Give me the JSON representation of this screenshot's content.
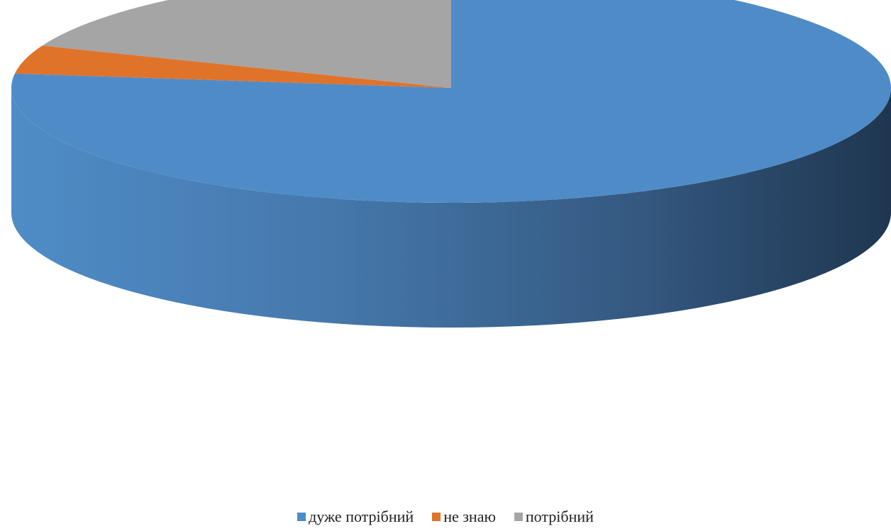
{
  "chart_data": {
    "type": "pie",
    "style": "3d",
    "legend_position": "bottom",
    "slices": [
      {
        "label": "дуже потрібний",
        "value": 77,
        "color": "#4F8CC7"
      },
      {
        "label": "не знаю",
        "value": 4,
        "color": "#E0732A"
      },
      {
        "label": "потрібний",
        "value": 19,
        "color": "#A5A5A5"
      }
    ]
  }
}
